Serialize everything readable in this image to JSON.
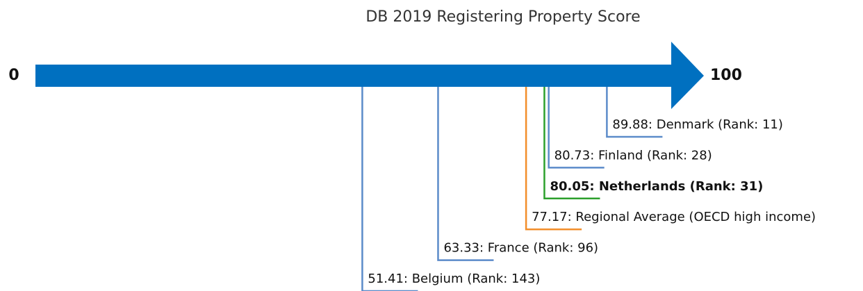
{
  "chart_data": {
    "type": "arrow",
    "title": "DB 2019 Registering Property Score",
    "xlim": [
      0,
      100
    ],
    "xticks": [
      0,
      100
    ],
    "arrow_color": "#0070c0",
    "values": [
      89.88,
      80.73,
      80.05,
      77.17,
      63.33,
      51.41
    ],
    "value_labels": [
      "89.88: Denmark (Rank: 11)",
      "80.73: Finland (Rank: 28)",
      "80.05: Netherlands (Rank: 31)",
      "77.17: Regional Average (OECD high income)",
      "63.33: France (Rank: 96)",
      "51.41: Belgium (Rank: 143)"
    ],
    "colors": [
      "#5b8bc9",
      "#5b8bc9",
      "#2ca02c",
      "#f28e2b",
      "#5b8bc9",
      "#5b8bc9"
    ],
    "bold": [
      false,
      false,
      true,
      false,
      false,
      false
    ]
  }
}
